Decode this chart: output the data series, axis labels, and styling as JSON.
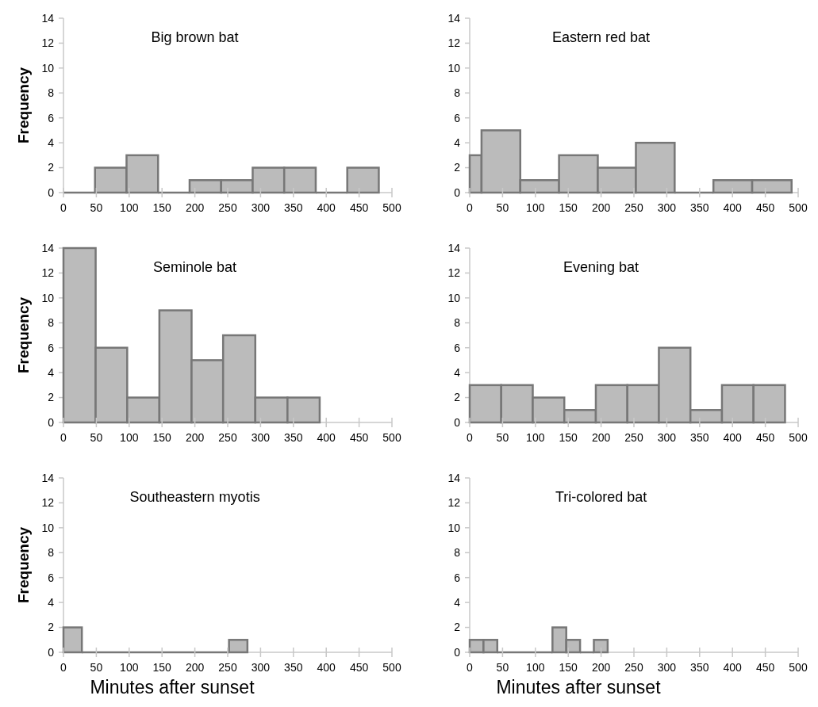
{
  "chart_data": [
    {
      "type": "histogram",
      "title": "Big brown bat",
      "ylabel": "Frequency",
      "bins": [
        0,
        48,
        96,
        144,
        192,
        240,
        288,
        336,
        384,
        432,
        480
      ],
      "values": [
        0,
        2,
        3,
        0,
        1,
        1,
        2,
        2,
        0,
        2
      ],
      "color": "#bbbbbb",
      "xlim": [
        0,
        500
      ],
      "xticks": [
        0,
        50,
        100,
        150,
        200,
        250,
        300,
        350,
        400,
        450,
        500
      ],
      "ylim": [
        0,
        14
      ],
      "yticks": [
        0,
        2,
        4,
        6,
        8,
        10,
        12,
        14
      ],
      "grid": false
    },
    {
      "type": "histogram",
      "title": "Eastern red bat",
      "bins": [
        0,
        18,
        77,
        136,
        195,
        253,
        312,
        371,
        430,
        490
      ],
      "values": [
        3,
        5,
        1,
        3,
        2,
        4,
        0,
        1,
        1
      ],
      "color": "#bbbbbb",
      "xlim": [
        0,
        500
      ],
      "xticks": [
        0,
        50,
        100,
        150,
        200,
        250,
        300,
        350,
        400,
        450,
        500
      ],
      "ylim": [
        0,
        14
      ],
      "yticks": [
        0,
        2,
        4,
        6,
        8,
        10,
        12,
        14
      ],
      "grid": false
    },
    {
      "type": "histogram",
      "title": "Seminole bat",
      "ylabel": "Frequency",
      "bins": [
        0,
        49,
        97,
        146,
        195,
        243,
        292,
        341,
        390
      ],
      "values": [
        14,
        6,
        2,
        9,
        5,
        7,
        2,
        2
      ],
      "color": "#bbbbbb",
      "xlim": [
        0,
        500
      ],
      "xticks": [
        0,
        50,
        100,
        150,
        200,
        250,
        300,
        350,
        400,
        450,
        500
      ],
      "ylim": [
        0,
        14
      ],
      "yticks": [
        0,
        2,
        4,
        6,
        8,
        10,
        12,
        14
      ],
      "grid": false
    },
    {
      "type": "histogram",
      "title": "Evening bat",
      "bins": [
        0,
        48,
        96,
        144,
        192,
        240,
        288,
        336,
        384,
        432,
        480
      ],
      "values": [
        3,
        3,
        2,
        1,
        3,
        3,
        6,
        1,
        3,
        3
      ],
      "color": "#bbbbbb",
      "xlim": [
        0,
        500
      ],
      "xticks": [
        0,
        50,
        100,
        150,
        200,
        250,
        300,
        350,
        400,
        450,
        500
      ],
      "ylim": [
        0,
        14
      ],
      "yticks": [
        0,
        2,
        4,
        6,
        8,
        10,
        12,
        14
      ],
      "grid": false
    },
    {
      "type": "histogram",
      "title": "Southeastern myotis",
      "ylabel": "Frequency",
      "xlabel": "Minutes after sunset",
      "bins": [
        0,
        28,
        252,
        280
      ],
      "values": [
        2,
        0,
        1
      ],
      "color": "#bbbbbb",
      "xlim": [
        0,
        500
      ],
      "xticks": [
        0,
        50,
        100,
        150,
        200,
        250,
        300,
        350,
        400,
        450,
        500
      ],
      "ylim": [
        0,
        14
      ],
      "yticks": [
        0,
        2,
        4,
        6,
        8,
        10,
        12,
        14
      ],
      "grid": false
    },
    {
      "type": "histogram",
      "title": "Tri-colored bat",
      "xlabel": "Minutes after sunset",
      "bins": [
        0,
        21,
        42,
        126,
        147,
        168,
        189,
        210
      ],
      "values": [
        1,
        1,
        0,
        2,
        1,
        0,
        1
      ],
      "color": "#bbbbbb",
      "xlim": [
        0,
        500
      ],
      "xticks": [
        0,
        50,
        100,
        150,
        200,
        250,
        300,
        350,
        400,
        450,
        500
      ],
      "ylim": [
        0,
        14
      ],
      "yticks": [
        0,
        2,
        4,
        6,
        8,
        10,
        12,
        14
      ],
      "grid": false
    }
  ]
}
